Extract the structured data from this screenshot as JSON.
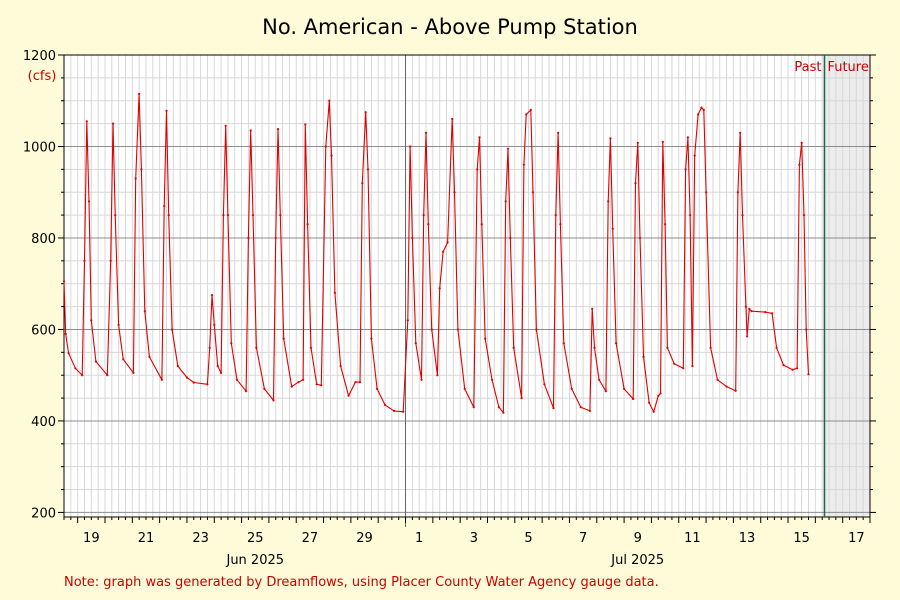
{
  "chart_data": {
    "type": "line",
    "title": "No. American - Above Pump Station",
    "ylabel": "(cfs)",
    "xlabel": "",
    "ylim": [
      190,
      1200
    ],
    "xlim": [
      "2025-06-18T12:00",
      "2025-07-18T00:00"
    ],
    "y_ticks": [
      200,
      400,
      600,
      800,
      1000,
      1200
    ],
    "x_tick_labels": [
      {
        "label": "19",
        "date": "2025-06-19"
      },
      {
        "label": "21",
        "date": "2025-06-21"
      },
      {
        "label": "23",
        "date": "2025-06-23"
      },
      {
        "label": "25",
        "date": "2025-06-25"
      },
      {
        "label": "27",
        "date": "2025-06-27"
      },
      {
        "label": "29",
        "date": "2025-06-29"
      },
      {
        "label": "1",
        "date": "2025-07-01"
      },
      {
        "label": "3",
        "date": "2025-07-03"
      },
      {
        "label": "5",
        "date": "2025-07-05"
      },
      {
        "label": "7",
        "date": "2025-07-07"
      },
      {
        "label": "9",
        "date": "2025-07-09"
      },
      {
        "label": "11",
        "date": "2025-07-11"
      },
      {
        "label": "13",
        "date": "2025-07-13"
      },
      {
        "label": "15",
        "date": "2025-07-15"
      },
      {
        "label": "17",
        "date": "2025-07-17"
      }
    ],
    "month_labels": [
      {
        "label": "Jun 2025",
        "date": "2025-06-25"
      },
      {
        "label": "Jul 2025",
        "date": "2025-07-09"
      }
    ],
    "month_boundary": "2025-07-01",
    "now": "2025-07-16T08:00",
    "past_label": "Past",
    "future_label": "Future",
    "grid": true,
    "series": [
      {
        "color": "#e00000",
        "points": [
          [
            "2025-06-18T12:00",
            705
          ],
          [
            "2025-06-18T13:30",
            590
          ],
          [
            "2025-06-18T16:00",
            548
          ],
          [
            "2025-06-18T22:00",
            515
          ],
          [
            "2025-06-19T04:00",
            500
          ],
          [
            "2025-06-19T06:00",
            750
          ],
          [
            "2025-06-19T08:00",
            1055
          ],
          [
            "2025-06-19T10:00",
            880
          ],
          [
            "2025-06-19T12:00",
            620
          ],
          [
            "2025-06-19T16:00",
            530
          ],
          [
            "2025-06-20T02:00",
            500
          ],
          [
            "2025-06-20T05:00",
            750
          ],
          [
            "2025-06-20T07:00",
            1050
          ],
          [
            "2025-06-20T09:00",
            850
          ],
          [
            "2025-06-20T12:00",
            610
          ],
          [
            "2025-06-20T16:00",
            535
          ],
          [
            "2025-06-21T01:00",
            505
          ],
          [
            "2025-06-21T03:00",
            930
          ],
          [
            "2025-06-21T06:00",
            1115
          ],
          [
            "2025-06-21T08:00",
            950
          ],
          [
            "2025-06-21T11:00",
            640
          ],
          [
            "2025-06-21T15:00",
            540
          ],
          [
            "2025-06-22T02:00",
            490
          ],
          [
            "2025-06-22T04:00",
            870
          ],
          [
            "2025-06-22T06:00",
            1078
          ],
          [
            "2025-06-22T08:00",
            850
          ],
          [
            "2025-06-22T11:00",
            600
          ],
          [
            "2025-06-22T16:00",
            520
          ],
          [
            "2025-06-23T00:00",
            495
          ],
          [
            "2025-06-23T06:00",
            484
          ],
          [
            "2025-06-23T18:00",
            480
          ],
          [
            "2025-06-23T20:00",
            560
          ],
          [
            "2025-06-23T22:00",
            675
          ],
          [
            "2025-06-24T00:00",
            610
          ],
          [
            "2025-06-24T03:00",
            520
          ],
          [
            "2025-06-24T06:00",
            505
          ],
          [
            "2025-06-24T08:00",
            850
          ],
          [
            "2025-06-24T10:00",
            1045
          ],
          [
            "2025-06-24T12:00",
            850
          ],
          [
            "2025-06-24T15:00",
            570
          ],
          [
            "2025-06-24T20:00",
            490
          ],
          [
            "2025-06-25T04:00",
            465
          ],
          [
            "2025-06-25T06:00",
            800
          ],
          [
            "2025-06-25T08:00",
            1035
          ],
          [
            "2025-06-25T10:00",
            850
          ],
          [
            "2025-06-25T13:00",
            560
          ],
          [
            "2025-06-25T20:00",
            470
          ],
          [
            "2025-06-26T04:00",
            445
          ],
          [
            "2025-06-26T06:00",
            800
          ],
          [
            "2025-06-26T08:00",
            1038
          ],
          [
            "2025-06-26T10:00",
            850
          ],
          [
            "2025-06-26T13:00",
            580
          ],
          [
            "2025-06-26T20:00",
            475
          ],
          [
            "2025-06-27T02:00",
            485
          ],
          [
            "2025-06-27T06:00",
            490
          ],
          [
            "2025-06-27T08:00",
            1048
          ],
          [
            "2025-06-27T10:00",
            830
          ],
          [
            "2025-06-27T13:00",
            560
          ],
          [
            "2025-06-27T18:00",
            480
          ],
          [
            "2025-06-27T22:00",
            478
          ],
          [
            "2025-06-28T02:00",
            1000
          ],
          [
            "2025-06-28T05:00",
            1100
          ],
          [
            "2025-06-28T07:00",
            980
          ],
          [
            "2025-06-28T10:00",
            680
          ],
          [
            "2025-06-28T15:00",
            520
          ],
          [
            "2025-06-28T22:00",
            455
          ],
          [
            "2025-06-29T04:00",
            485
          ],
          [
            "2025-06-29T08:00",
            485
          ],
          [
            "2025-06-29T10:00",
            920
          ],
          [
            "2025-06-29T13:00",
            1075
          ],
          [
            "2025-06-29T15:00",
            950
          ],
          [
            "2025-06-29T18:00",
            580
          ],
          [
            "2025-06-29T23:00",
            470
          ],
          [
            "2025-06-30T06:00",
            435
          ],
          [
            "2025-06-30T14:00",
            422
          ],
          [
            "2025-06-30T22:00",
            420
          ],
          [
            "2025-07-01T02:00",
            620
          ],
          [
            "2025-07-01T04:00",
            1000
          ],
          [
            "2025-07-01T06:00",
            800
          ],
          [
            "2025-07-01T09:00",
            570
          ],
          [
            "2025-07-01T14:00",
            490
          ],
          [
            "2025-07-01T16:00",
            850
          ],
          [
            "2025-07-01T18:00",
            1030
          ],
          [
            "2025-07-01T20:00",
            830
          ],
          [
            "2025-07-01T23:00",
            600
          ],
          [
            "2025-07-02T04:00",
            500
          ],
          [
            "2025-07-02T06:00",
            690
          ],
          [
            "2025-07-02T09:00",
            770
          ],
          [
            "2025-07-02T13:00",
            790
          ],
          [
            "2025-07-02T17:00",
            1060
          ],
          [
            "2025-07-02T19:00",
            900
          ],
          [
            "2025-07-02T22:00",
            600
          ],
          [
            "2025-07-03T04:00",
            470
          ],
          [
            "2025-07-03T12:00",
            430
          ],
          [
            "2025-07-03T15:00",
            950
          ],
          [
            "2025-07-03T17:00",
            1020
          ],
          [
            "2025-07-03T19:00",
            830
          ],
          [
            "2025-07-03T22:00",
            580
          ],
          [
            "2025-07-04T04:00",
            490
          ],
          [
            "2025-07-04T10:00",
            430
          ],
          [
            "2025-07-04T14:00",
            418
          ],
          [
            "2025-07-04T16:00",
            880
          ],
          [
            "2025-07-04T18:00",
            995
          ],
          [
            "2025-07-04T20:00",
            800
          ],
          [
            "2025-07-04T23:00",
            560
          ],
          [
            "2025-07-05T06:00",
            450
          ],
          [
            "2025-07-05T08:00",
            960
          ],
          [
            "2025-07-05T10:00",
            1070
          ],
          [
            "2025-07-05T14:00",
            1080
          ],
          [
            "2025-07-05T16:00",
            900
          ],
          [
            "2025-07-05T19:00",
            600
          ],
          [
            "2025-07-06T02:00",
            480
          ],
          [
            "2025-07-06T10:00",
            428
          ],
          [
            "2025-07-06T12:00",
            850
          ],
          [
            "2025-07-06T14:00",
            1030
          ],
          [
            "2025-07-06T16:00",
            830
          ],
          [
            "2025-07-06T19:00",
            570
          ],
          [
            "2025-07-07T02:00",
            470
          ],
          [
            "2025-07-07T10:00",
            430
          ],
          [
            "2025-07-07T18:00",
            422
          ],
          [
            "2025-07-07T20:00",
            645
          ],
          [
            "2025-07-07T22:00",
            560
          ],
          [
            "2025-07-08T02:00",
            490
          ],
          [
            "2025-07-08T08:00",
            465
          ],
          [
            "2025-07-08T10:00",
            880
          ],
          [
            "2025-07-08T12:00",
            1018
          ],
          [
            "2025-07-08T14:00",
            820
          ],
          [
            "2025-07-08T17:00",
            570
          ],
          [
            "2025-07-09T00:00",
            470
          ],
          [
            "2025-07-09T08:00",
            448
          ],
          [
            "2025-07-09T10:00",
            920
          ],
          [
            "2025-07-09T12:00",
            1008
          ],
          [
            "2025-07-09T14:00",
            800
          ],
          [
            "2025-07-09T17:00",
            540
          ],
          [
            "2025-07-09T22:00",
            440
          ],
          [
            "2025-07-10T02:00",
            420
          ],
          [
            "2025-07-10T06:00",
            455
          ],
          [
            "2025-07-10T08:00",
            460
          ],
          [
            "2025-07-10T10:00",
            1010
          ],
          [
            "2025-07-10T12:00",
            830
          ],
          [
            "2025-07-10T14:00",
            560
          ],
          [
            "2025-07-10T20:00",
            525
          ],
          [
            "2025-07-11T04:00",
            515
          ],
          [
            "2025-07-11T06:00",
            950
          ],
          [
            "2025-07-11T08:00",
            1020
          ],
          [
            "2025-07-11T10:00",
            850
          ],
          [
            "2025-07-11T12:00",
            520
          ],
          [
            "2025-07-11T14:00",
            980
          ],
          [
            "2025-07-11T17:00",
            1070
          ],
          [
            "2025-07-11T20:00",
            1085
          ],
          [
            "2025-07-11T22:00",
            1080
          ],
          [
            "2025-07-12T00:00",
            900
          ],
          [
            "2025-07-12T04:00",
            560
          ],
          [
            "2025-07-12T10:00",
            490
          ],
          [
            "2025-07-12T18:00",
            475
          ],
          [
            "2025-07-13T02:00",
            466
          ],
          [
            "2025-07-13T04:00",
            900
          ],
          [
            "2025-07-13T06:00",
            1030
          ],
          [
            "2025-07-13T08:00",
            850
          ],
          [
            "2025-07-13T11:00",
            650
          ],
          [
            "2025-07-13T12:00",
            585
          ],
          [
            "2025-07-13T14:00",
            645
          ],
          [
            "2025-07-13T16:00",
            640
          ],
          [
            "2025-07-14T04:00",
            638
          ],
          [
            "2025-07-14T10:00",
            635
          ],
          [
            "2025-07-14T14:00",
            560
          ],
          [
            "2025-07-14T20:00",
            522
          ],
          [
            "2025-07-15T04:00",
            512
          ],
          [
            "2025-07-15T08:00",
            515
          ],
          [
            "2025-07-15T10:00",
            960
          ],
          [
            "2025-07-15T12:00",
            1008
          ],
          [
            "2025-07-15T14:00",
            850
          ],
          [
            "2025-07-15T16:00",
            600
          ],
          [
            "2025-07-15T18:00",
            502
          ]
        ]
      }
    ],
    "note": "Note: graph was generated by Dreamflows, using Placer County Water Agency gauge data."
  }
}
